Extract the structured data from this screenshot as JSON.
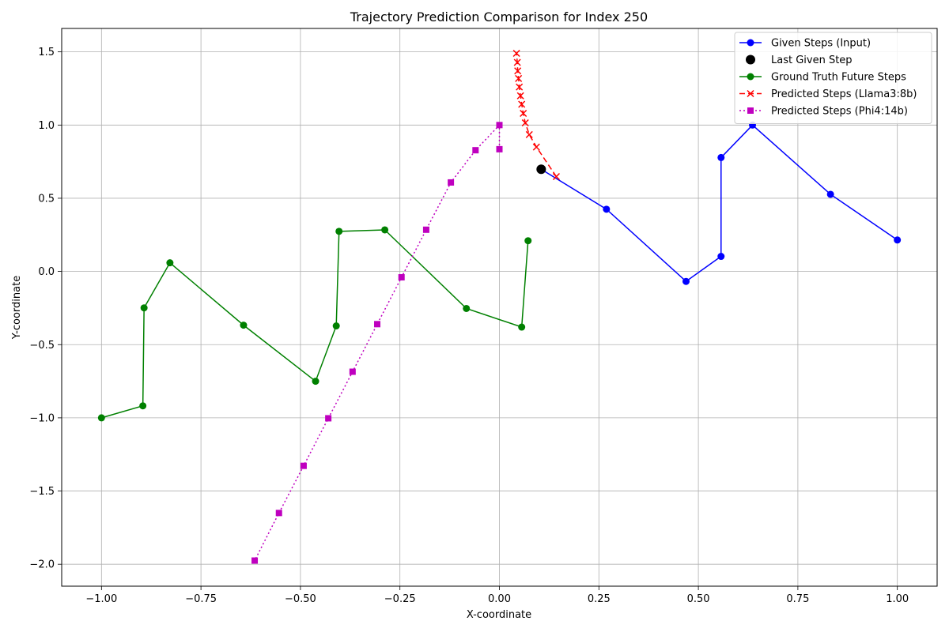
{
  "chart_data": {
    "type": "line",
    "title": "Trajectory Prediction Comparison for Index 250",
    "xlabel": "X-coordinate",
    "ylabel": "Y-coordinate",
    "xlim": [
      -1.1,
      1.1
    ],
    "ylim": [
      -2.15,
      1.66
    ],
    "xticks": [
      -1.0,
      -0.75,
      -0.5,
      -0.25,
      0.0,
      0.25,
      0.5,
      0.75,
      1.0
    ],
    "xtick_labels": [
      "−1.00",
      "−0.75",
      "−0.50",
      "−0.25",
      "0.00",
      "0.25",
      "0.50",
      "0.75",
      "1.00"
    ],
    "yticks": [
      -2.0,
      -1.5,
      -1.0,
      -0.5,
      0.0,
      0.5,
      1.0,
      1.5
    ],
    "ytick_labels": [
      "−2.0",
      "−1.5",
      "−1.0",
      "−0.5",
      "0.0",
      "0.5",
      "1.0",
      "1.5"
    ],
    "grid": true,
    "legend_position": "top-right",
    "series": [
      {
        "name": "Given Steps (Input)",
        "color": "#0000ff",
        "linestyle": "solid",
        "marker": "circle",
        "points": [
          [
            1.0,
            0.215
          ],
          [
            0.832,
            0.527
          ],
          [
            0.636,
            1.0
          ],
          [
            0.557,
            0.778
          ],
          [
            0.557,
            0.103
          ],
          [
            0.469,
            -0.068
          ],
          [
            0.269,
            0.425
          ],
          [
            0.105,
            0.698
          ]
        ]
      },
      {
        "name": "Last Given Step",
        "color": "#000000",
        "linestyle": "none",
        "marker": "big-circle",
        "points": [
          [
            0.105,
            0.698
          ]
        ]
      },
      {
        "name": "Ground Truth Future Steps",
        "color": "#008000",
        "linestyle": "solid",
        "marker": "circle",
        "points": [
          [
            -1.0,
            -1.0
          ],
          [
            -0.896,
            -0.918
          ],
          [
            -0.893,
            -0.249
          ],
          [
            -0.828,
            0.059
          ],
          [
            -0.643,
            -0.367
          ],
          [
            -0.462,
            -0.75
          ],
          [
            -0.41,
            -0.372
          ],
          [
            -0.403,
            0.274
          ],
          [
            -0.288,
            0.284
          ],
          [
            -0.083,
            -0.253
          ],
          [
            0.056,
            -0.38
          ],
          [
            0.072,
            0.21
          ]
        ]
      },
      {
        "name": "Predicted Steps (Llama3:8b)",
        "color": "#ff0000",
        "linestyle": "dashed",
        "marker": "x",
        "points": [
          [
            0.143,
            0.648
          ],
          [
            0.093,
            0.85
          ],
          [
            0.075,
            0.935
          ],
          [
            0.065,
            1.015
          ],
          [
            0.06,
            1.08
          ],
          [
            0.056,
            1.142
          ],
          [
            0.053,
            1.2
          ],
          [
            0.05,
            1.26
          ],
          [
            0.048,
            1.318
          ],
          [
            0.046,
            1.37
          ],
          [
            0.045,
            1.428
          ],
          [
            0.043,
            1.49
          ]
        ]
      },
      {
        "name": "Predicted Steps (Phi4:14b)",
        "color": "#bf00bf",
        "linestyle": "dotted",
        "marker": "square",
        "points": [
          [
            0.0,
            0.835
          ],
          [
            0.0,
            1.0
          ],
          [
            -0.06,
            0.828
          ],
          [
            -0.122,
            0.608
          ],
          [
            -0.184,
            0.285
          ],
          [
            -0.246,
            -0.04
          ],
          [
            -0.307,
            -0.36
          ],
          [
            -0.369,
            -0.685
          ],
          [
            -0.43,
            -1.003
          ],
          [
            -0.492,
            -1.328
          ],
          [
            -0.554,
            -1.65
          ],
          [
            -0.615,
            -1.975
          ]
        ]
      }
    ]
  }
}
